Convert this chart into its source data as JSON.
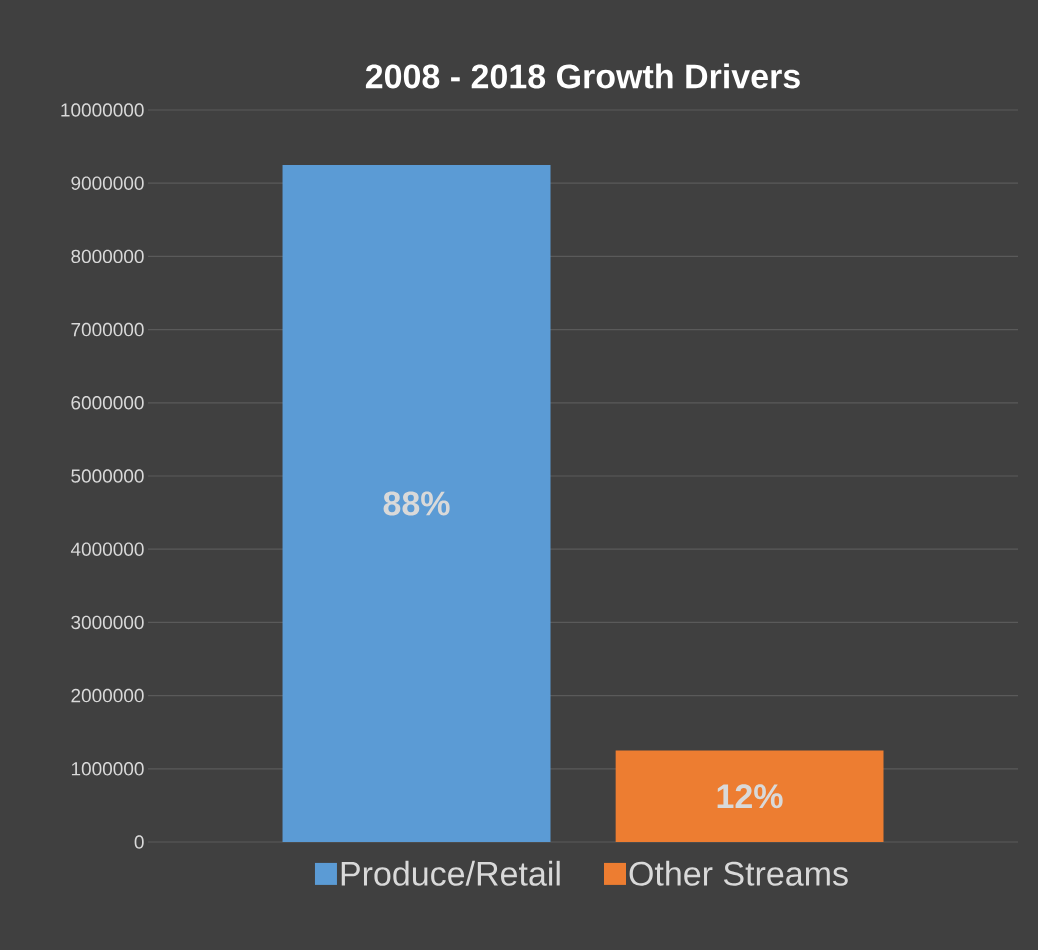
{
  "chart_data": {
    "type": "bar",
    "title": "2008 - 2018 Growth Drivers",
    "categories": [
      null
    ],
    "series": [
      {
        "name": "Produce/Retail",
        "color": "#5b9bd5",
        "values": [
          9250000
        ]
      },
      {
        "name": "Other Streams",
        "color": "#ed7d31",
        "values": [
          1250000
        ]
      }
    ],
    "annotations": [
      "88%",
      "12%"
    ],
    "ylim": [
      0,
      10000000
    ],
    "yticks": [
      0,
      1000000,
      2000000,
      3000000,
      4000000,
      5000000,
      6000000,
      7000000,
      8000000,
      9000000,
      10000000
    ],
    "grid": "y",
    "legend": "bottom"
  }
}
